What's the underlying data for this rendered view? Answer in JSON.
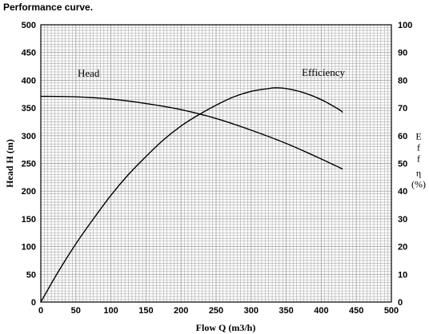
{
  "page": {
    "caption": "Performance curve."
  },
  "chart_data": {
    "type": "line",
    "title": "",
    "xlabel": "Flow Q (m3/h)",
    "ylabel": "Head H (m)",
    "ylabel_right": "Eff η (%)",
    "xlim": [
      0,
      500
    ],
    "ylim": [
      0,
      500
    ],
    "ylim_right": [
      0,
      100
    ],
    "xticks": [
      0,
      50,
      100,
      150,
      200,
      250,
      300,
      350,
      400,
      450,
      500
    ],
    "yticks": [
      0,
      50,
      100,
      150,
      200,
      250,
      300,
      350,
      400,
      450,
      500
    ],
    "yticks_right": [
      0,
      10,
      20,
      30,
      40,
      50,
      60,
      70,
      80,
      90,
      100
    ],
    "grid": true,
    "grid_minor_x": 10,
    "grid_minor_y": 10,
    "colors": {
      "background": "#ffffff",
      "grid": "#a6a6a6",
      "axis": "#000000",
      "curve": "#000000"
    },
    "series": [
      {
        "name": "Head",
        "axis": "left",
        "x": [
          0,
          50,
          100,
          150,
          200,
          250,
          300,
          350,
          400,
          430
        ],
        "y": [
          371,
          370,
          366,
          358,
          347,
          331,
          310,
          286,
          258,
          240
        ]
      },
      {
        "name": "Efficiency",
        "axis": "right",
        "x": [
          0,
          25,
          50,
          75,
          100,
          125,
          150,
          175,
          200,
          225,
          250,
          275,
          300,
          325,
          335,
          350,
          375,
          400,
          425,
          430
        ],
        "y": [
          0,
          11,
          21,
          30,
          38.5,
          46,
          52.5,
          58.5,
          63.5,
          67.5,
          71,
          74,
          76,
          77,
          77.3,
          77,
          75.5,
          73,
          69.5,
          68.5
        ]
      }
    ],
    "annotations": [
      {
        "text": "Head",
        "series": "Head"
      },
      {
        "text": "Efficiency",
        "series": "Efficiency"
      }
    ]
  }
}
